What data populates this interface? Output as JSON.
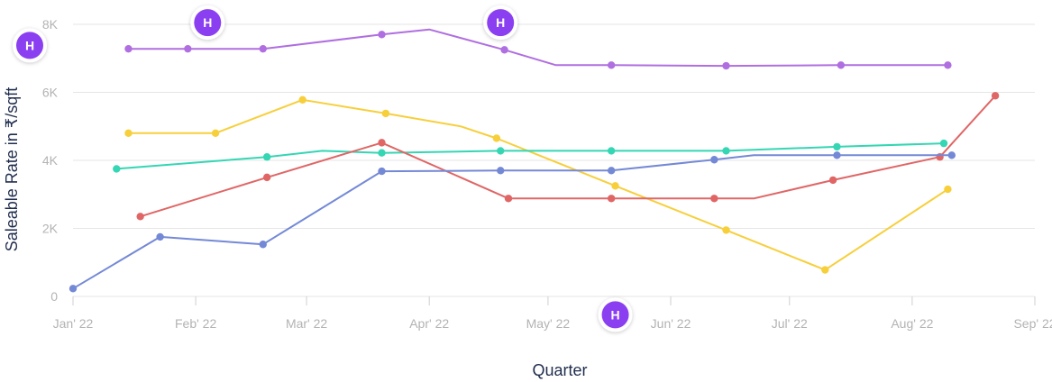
{
  "chart_data": {
    "type": "line",
    "xlabel": "Quarter",
    "ylabel": "Saleable Rate in ₹/sqft",
    "ylim": [
      0,
      8000
    ],
    "yticks": [
      {
        "value": 0,
        "label": "0"
      },
      {
        "value": 2000,
        "label": "2K"
      },
      {
        "value": 4000,
        "label": "4K"
      },
      {
        "value": 6000,
        "label": "6K"
      },
      {
        "value": 8000,
        "label": "8K"
      }
    ],
    "xlim": [
      "2022-01-01",
      "2022-09-01"
    ],
    "xticks": [
      {
        "date": "2022-01-01",
        "label": "Jan' 22"
      },
      {
        "date": "2022-02-01",
        "label": "Feb' 22"
      },
      {
        "date": "2022-03-01",
        "label": "Mar' 22"
      },
      {
        "date": "2022-04-01",
        "label": "Apr' 22"
      },
      {
        "date": "2022-05-01",
        "label": "May' 22"
      },
      {
        "date": "2022-06-01",
        "label": "Jun' 22"
      },
      {
        "date": "2022-07-01",
        "label": "Jul' 22"
      },
      {
        "date": "2022-08-01",
        "label": "Aug' 22"
      },
      {
        "date": "2022-09-01",
        "label": "Sep' 22"
      }
    ],
    "grid": true,
    "series": [
      {
        "color": "#b06fe0",
        "points": [
          {
            "x": "2022-01-15",
            "y": 7280,
            "marker": true
          },
          {
            "x": "2022-01-30",
            "y": 7280,
            "marker": true
          },
          {
            "x": "2022-02-18",
            "y": 7280,
            "marker": true
          },
          {
            "x": "2022-03-20",
            "y": 7700,
            "marker": true
          },
          {
            "x": "2022-04-01",
            "y": 7850,
            "marker": false
          },
          {
            "x": "2022-04-20",
            "y": 7250,
            "marker": true
          },
          {
            "x": "2022-05-03",
            "y": 6800,
            "marker": false
          },
          {
            "x": "2022-05-17",
            "y": 6800,
            "marker": true
          },
          {
            "x": "2022-06-15",
            "y": 6780,
            "marker": true
          },
          {
            "x": "2022-07-14",
            "y": 6800,
            "marker": true
          },
          {
            "x": "2022-08-10",
            "y": 6800,
            "marker": true
          }
        ]
      },
      {
        "color": "#f7cf3b",
        "points": [
          {
            "x": "2022-01-15",
            "y": 4800,
            "marker": true
          },
          {
            "x": "2022-02-06",
            "y": 4800,
            "marker": true
          },
          {
            "x": "2022-02-28",
            "y": 5780,
            "marker": true
          },
          {
            "x": "2022-03-21",
            "y": 5380,
            "marker": true
          },
          {
            "x": "2022-04-09",
            "y": 5000,
            "marker": false
          },
          {
            "x": "2022-04-18",
            "y": 4650,
            "marker": true
          },
          {
            "x": "2022-05-18",
            "y": 3250,
            "marker": true
          },
          {
            "x": "2022-06-15",
            "y": 1950,
            "marker": true
          },
          {
            "x": "2022-07-10",
            "y": 780,
            "marker": true
          },
          {
            "x": "2022-08-10",
            "y": 3150,
            "marker": true
          }
        ]
      },
      {
        "color": "#35d6b4",
        "points": [
          {
            "x": "2022-01-12",
            "y": 3750,
            "marker": true
          },
          {
            "x": "2022-02-19",
            "y": 4100,
            "marker": true
          },
          {
            "x": "2022-03-05",
            "y": 4280,
            "marker": false
          },
          {
            "x": "2022-03-20",
            "y": 4220,
            "marker": true
          },
          {
            "x": "2022-04-19",
            "y": 4280,
            "marker": true
          },
          {
            "x": "2022-05-17",
            "y": 4280,
            "marker": true
          },
          {
            "x": "2022-06-15",
            "y": 4280,
            "marker": true
          },
          {
            "x": "2022-07-13",
            "y": 4400,
            "marker": true
          },
          {
            "x": "2022-08-09",
            "y": 4500,
            "marker": true
          }
        ]
      },
      {
        "color": "#e06666",
        "points": [
          {
            "x": "2022-01-18",
            "y": 2350,
            "marker": true
          },
          {
            "x": "2022-02-19",
            "y": 3500,
            "marker": true
          },
          {
            "x": "2022-03-20",
            "y": 4520,
            "marker": true
          },
          {
            "x": "2022-04-21",
            "y": 2880,
            "marker": true
          },
          {
            "x": "2022-05-17",
            "y": 2880,
            "marker": true
          },
          {
            "x": "2022-06-12",
            "y": 2880,
            "marker": true
          },
          {
            "x": "2022-06-22",
            "y": 2880,
            "marker": false
          },
          {
            "x": "2022-07-12",
            "y": 3420,
            "marker": true
          },
          {
            "x": "2022-08-08",
            "y": 4100,
            "marker": true
          },
          {
            "x": "2022-08-22",
            "y": 5900,
            "marker": true
          }
        ]
      },
      {
        "color": "#7489d6",
        "points": [
          {
            "x": "2022-01-01",
            "y": 230,
            "marker": true
          },
          {
            "x": "2022-01-23",
            "y": 1750,
            "marker": true
          },
          {
            "x": "2022-02-18",
            "y": 1530,
            "marker": true
          },
          {
            "x": "2022-03-20",
            "y": 3680,
            "marker": true
          },
          {
            "x": "2022-04-19",
            "y": 3700,
            "marker": true
          },
          {
            "x": "2022-05-17",
            "y": 3700,
            "marker": true
          },
          {
            "x": "2022-06-12",
            "y": 4020,
            "marker": true
          },
          {
            "x": "2022-06-22",
            "y": 4150,
            "marker": false
          },
          {
            "x": "2022-07-13",
            "y": 4150,
            "marker": true
          },
          {
            "x": "2022-08-11",
            "y": 4150,
            "marker": true
          }
        ]
      }
    ],
    "annotations": [
      {
        "label": "H",
        "x": "2022-01-01",
        "y": 7380,
        "color": "#8a3ff0",
        "edge": "left"
      },
      {
        "label": "H",
        "x": "2022-02-04",
        "y": 8050,
        "color": "#8a3ff0"
      },
      {
        "label": "H",
        "x": "2022-04-19",
        "y": 8050,
        "color": "#8a3ff0"
      },
      {
        "label": "H",
        "x": "2022-05-18",
        "y": -540,
        "color": "#8a3ff0"
      }
    ]
  }
}
